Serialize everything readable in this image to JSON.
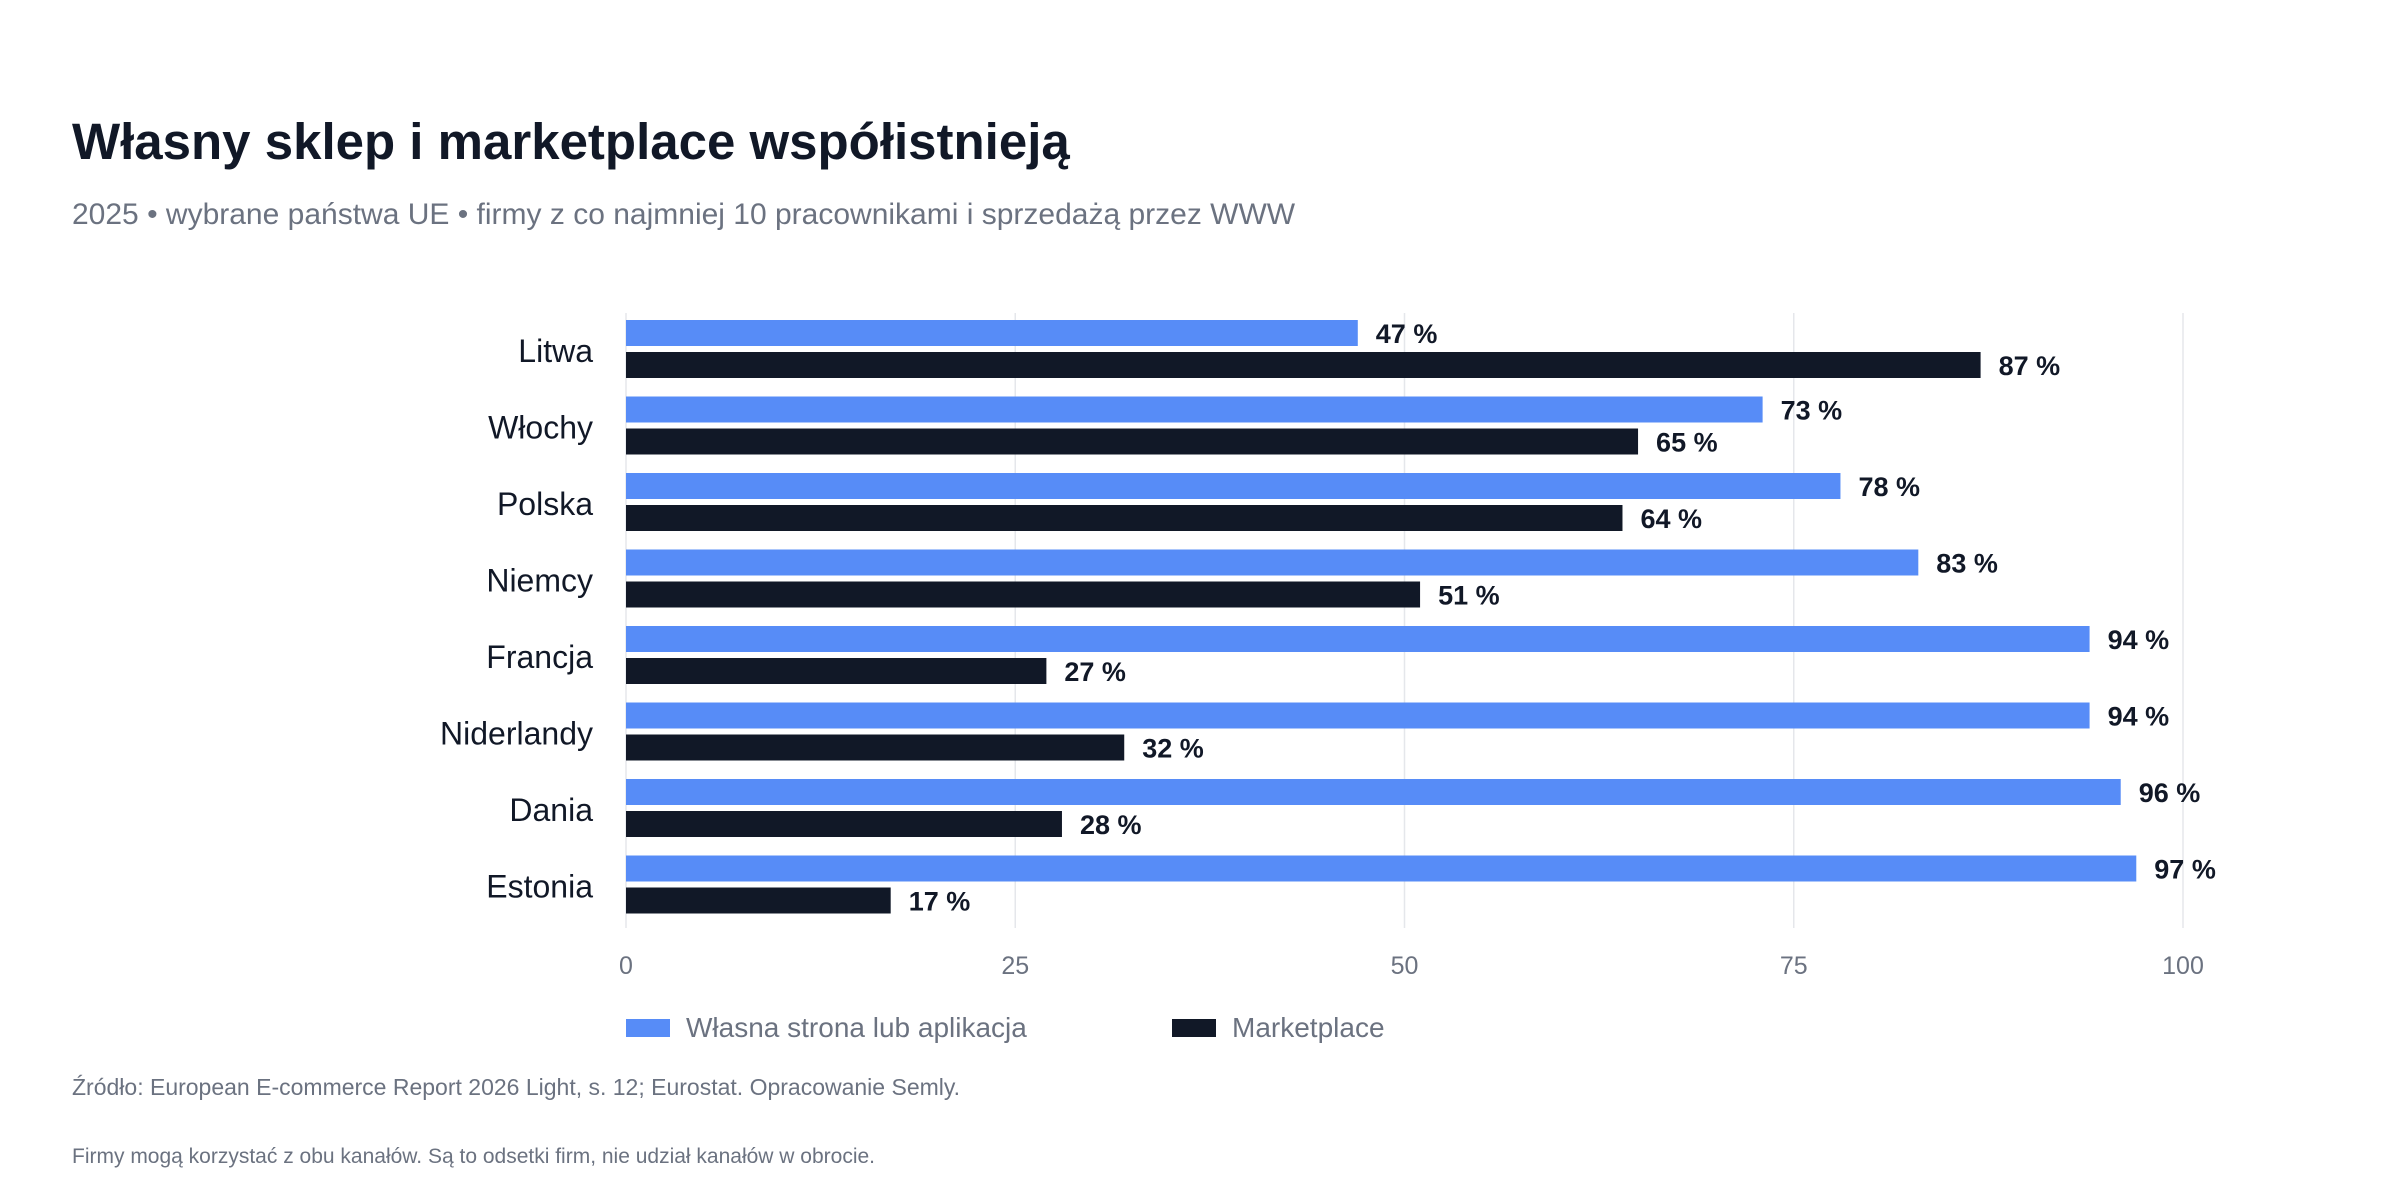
{
  "title": "Własny sklep i marketplace współistnieją",
  "subtitle": "2025 • wybrane państwa UE • firmy z co najmniej 10 pracownikami i sprzedażą przez WWW",
  "source": "Źródło: European E-commerce Report 2026 Light, s. 12; Eurostat. Opracowanie Semly.",
  "note": "Firmy mogą korzystać z obu kanałów. Są to odsetki firm, nie udział kanałów w obrocie.",
  "colors": {
    "own": "#578cf7",
    "marketplace": "#111827",
    "grid": "#e5e7eb",
    "tick": "#6b7280"
  },
  "chart_data": {
    "type": "bar",
    "orientation": "horizontal",
    "categories": [
      "Litwa",
      "Włochy",
      "Polska",
      "Niemcy",
      "Francja",
      "Niderlandy",
      "Dania",
      "Estonia"
    ],
    "series": [
      {
        "name": "Własna strona lub aplikacja",
        "values": [
          47,
          73,
          78,
          83,
          94,
          94,
          96,
          97
        ]
      },
      {
        "name": "Marketplace",
        "values": [
          87,
          65,
          64,
          51,
          27,
          32,
          28,
          17
        ]
      }
    ],
    "value_suffix": " %",
    "xlim": [
      0,
      100
    ],
    "xticks": [
      0,
      25,
      50,
      75,
      100
    ],
    "grid": true,
    "legend_position": "bottom"
  }
}
